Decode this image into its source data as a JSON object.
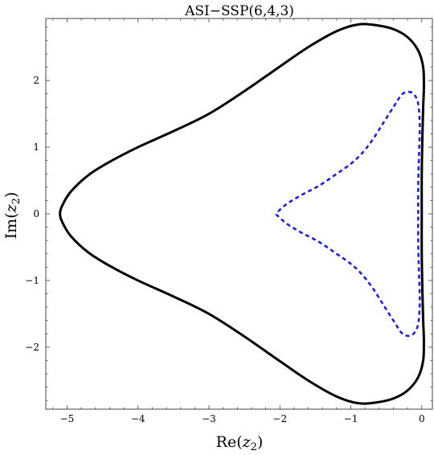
{
  "chart_data": {
    "type": "line",
    "title": "ASI−SSP(6,4,3)",
    "xlabel": {
      "main": "Re(",
      "var": "z",
      "sub": "2",
      "close": ")"
    },
    "ylabel": {
      "main": "Im(",
      "var": "z",
      "sub": "2",
      "close": ")"
    },
    "xlim": [
      -5.3,
      0.15
    ],
    "ylim": [
      -2.93,
      2.93
    ],
    "x_ticks": [
      -5,
      -4,
      -3,
      -2,
      -1,
      0
    ],
    "y_ticks": [
      -2,
      -1,
      0,
      1,
      2
    ],
    "x_tick_labels": [
      "−5",
      "−4",
      "−3",
      "−2",
      "−1",
      "0"
    ],
    "y_tick_labels": [
      "−2",
      "−1",
      "0",
      "1",
      "2"
    ],
    "grid": false,
    "series": [
      {
        "style": "solid",
        "color": "#000000",
        "points": [
          [
            0.0,
            0.0
          ],
          [
            0.0,
            0.6
          ],
          [
            0.01,
            1.2
          ],
          [
            0.02,
            1.6
          ],
          [
            0.03,
            1.9
          ],
          [
            0.02,
            2.2
          ],
          [
            -0.05,
            2.45
          ],
          [
            -0.2,
            2.65
          ],
          [
            -0.4,
            2.77
          ],
          [
            -0.65,
            2.83
          ],
          [
            -0.9,
            2.84
          ],
          [
            -1.2,
            2.74
          ],
          [
            -1.6,
            2.5
          ],
          [
            -2.0,
            2.21
          ],
          [
            -2.5,
            1.84
          ],
          [
            -3.0,
            1.5
          ],
          [
            -3.5,
            1.24
          ],
          [
            -4.0,
            1.0
          ],
          [
            -4.4,
            0.78
          ],
          [
            -4.7,
            0.58
          ],
          [
            -4.95,
            0.33
          ],
          [
            -5.07,
            0.12
          ],
          [
            -5.1,
            0.0
          ],
          [
            -5.07,
            -0.12
          ],
          [
            -4.95,
            -0.33
          ],
          [
            -4.7,
            -0.58
          ],
          [
            -4.4,
            -0.78
          ],
          [
            -4.0,
            -1.0
          ],
          [
            -3.5,
            -1.24
          ],
          [
            -3.0,
            -1.5
          ],
          [
            -2.5,
            -1.84
          ],
          [
            -2.0,
            -2.21
          ],
          [
            -1.6,
            -2.5
          ],
          [
            -1.2,
            -2.74
          ],
          [
            -0.9,
            -2.84
          ],
          [
            -0.65,
            -2.83
          ],
          [
            -0.4,
            -2.77
          ],
          [
            -0.2,
            -2.65
          ],
          [
            -0.05,
            -2.45
          ],
          [
            0.02,
            -2.2
          ],
          [
            0.03,
            -1.9
          ],
          [
            0.02,
            -1.6
          ],
          [
            0.01,
            -1.2
          ],
          [
            0.0,
            -0.6
          ],
          [
            0.0,
            0.0
          ]
        ]
      },
      {
        "style": "dashed",
        "color": "#1f1fe0",
        "points": [
          [
            -0.05,
            0.0
          ],
          [
            -0.05,
            0.4
          ],
          [
            -0.04,
            0.85
          ],
          [
            -0.03,
            1.15
          ],
          [
            -0.03,
            1.4
          ],
          [
            -0.05,
            1.65
          ],
          [
            -0.1,
            1.78
          ],
          [
            -0.18,
            1.83
          ],
          [
            -0.28,
            1.79
          ],
          [
            -0.4,
            1.6
          ],
          [
            -0.55,
            1.35
          ],
          [
            -0.7,
            1.1
          ],
          [
            -0.85,
            0.9
          ],
          [
            -1.0,
            0.75
          ],
          [
            -1.2,
            0.6
          ],
          [
            -1.45,
            0.42
          ],
          [
            -1.7,
            0.28
          ],
          [
            -1.9,
            0.15
          ],
          [
            -2.03,
            0.03
          ],
          [
            -2.05,
            0.0
          ],
          [
            -2.03,
            -0.03
          ],
          [
            -1.9,
            -0.15
          ],
          [
            -1.7,
            -0.28
          ],
          [
            -1.45,
            -0.42
          ],
          [
            -1.2,
            -0.6
          ],
          [
            -1.0,
            -0.75
          ],
          [
            -0.85,
            -0.9
          ],
          [
            -0.7,
            -1.1
          ],
          [
            -0.55,
            -1.35
          ],
          [
            -0.4,
            -1.6
          ],
          [
            -0.28,
            -1.79
          ],
          [
            -0.18,
            -1.83
          ],
          [
            -0.1,
            -1.78
          ],
          [
            -0.05,
            -1.65
          ],
          [
            -0.03,
            -1.4
          ],
          [
            -0.03,
            -1.15
          ],
          [
            -0.04,
            -0.85
          ],
          [
            -0.05,
            -0.4
          ],
          [
            -0.05,
            0.0
          ]
        ]
      }
    ]
  }
}
